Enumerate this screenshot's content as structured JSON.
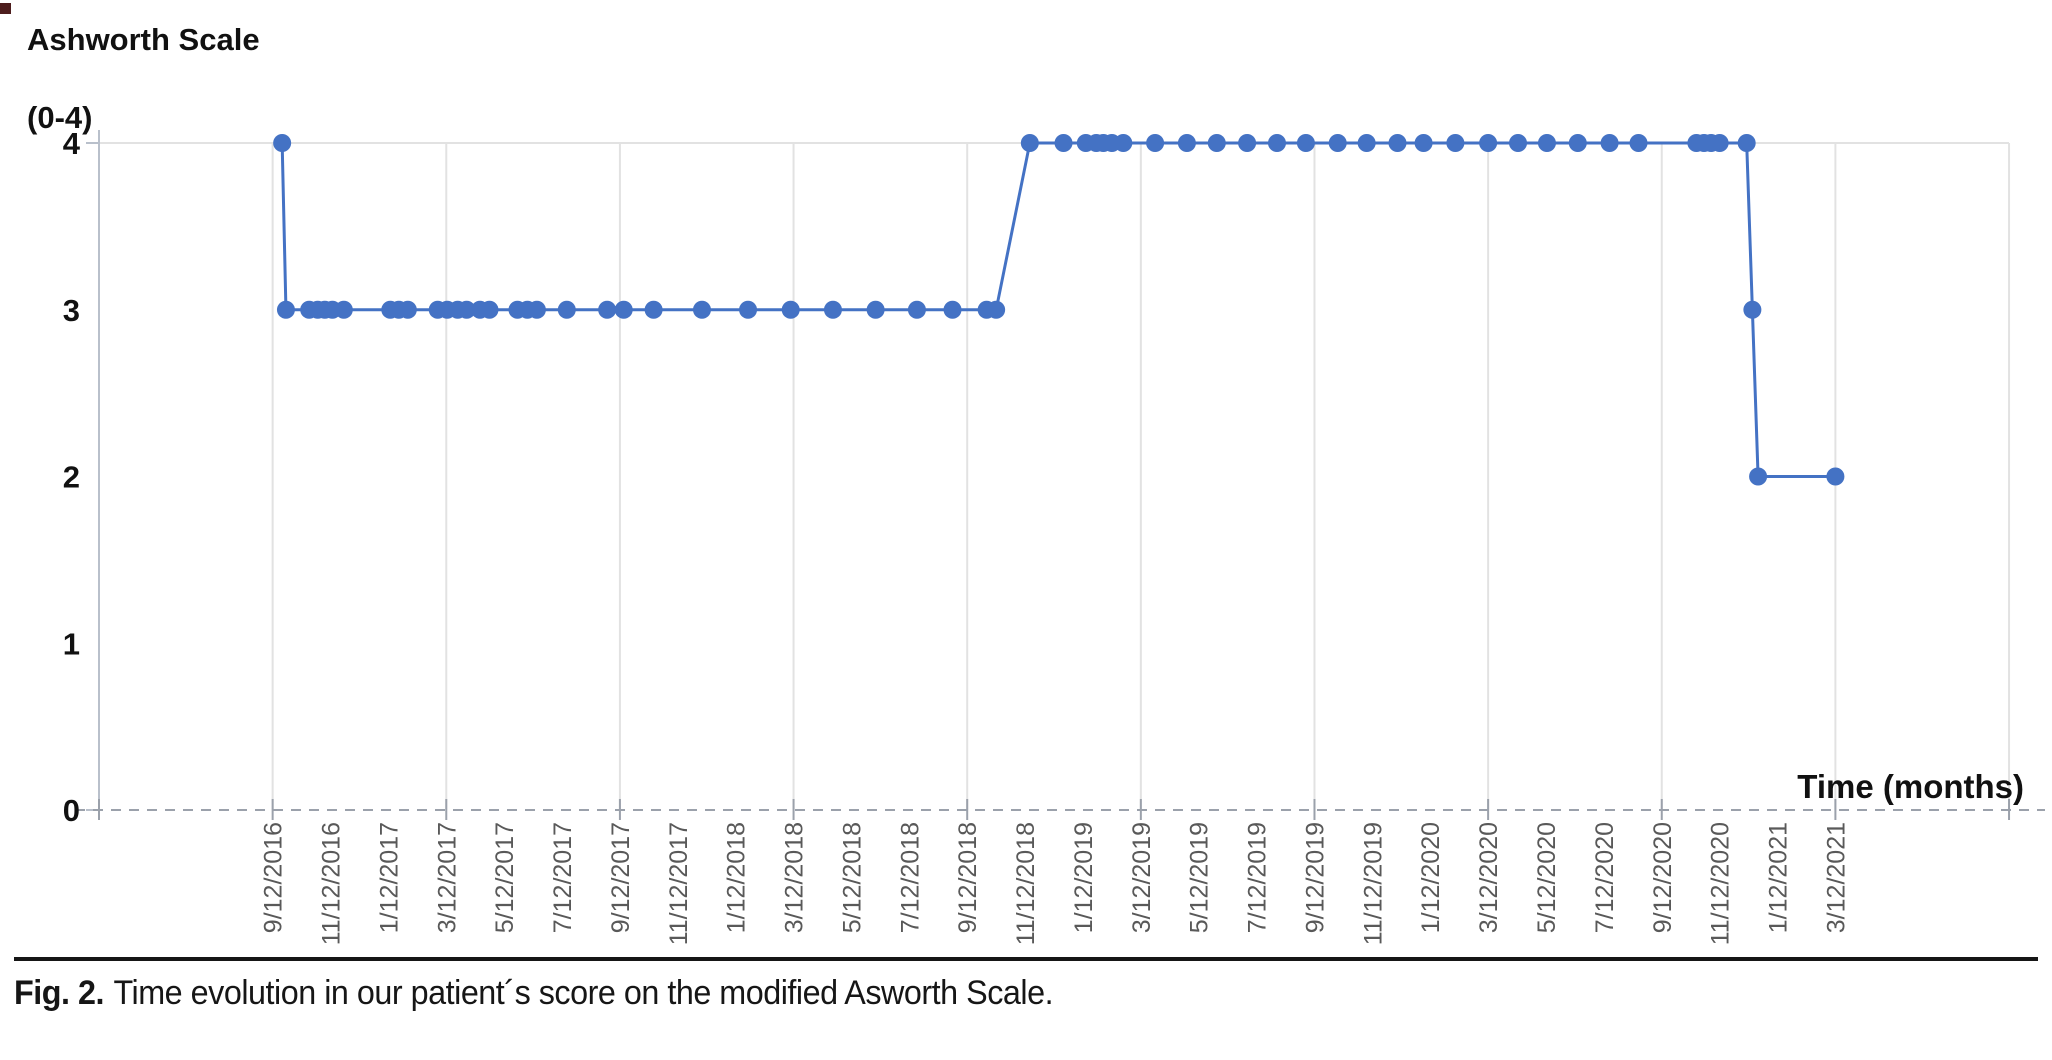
{
  "figure": {
    "caption_label": "Fig. 2.",
    "caption_text": "Time evolution in our patient´s score on the modified Asworth Scale."
  },
  "chart_data": {
    "type": "line",
    "title": "Ashworth Scale",
    "title_line2": "(0-4)",
    "x_axis_title": "Time (months)",
    "ylabel": "Ashworth Scale (0-4)",
    "ylim": [
      0,
      4
    ],
    "y_ticks": [
      0,
      1,
      2,
      3,
      4
    ],
    "x_domain": [
      "3/12/2016",
      "9/12/2021"
    ],
    "x_tick_labels": [
      "9/12/2016",
      "11/12/2016",
      "1/12/2017",
      "3/12/2017",
      "5/12/2017",
      "7/12/2017",
      "9/12/2017",
      "11/12/2017",
      "1/12/2018",
      "3/12/2018",
      "5/12/2018",
      "7/12/2018",
      "9/12/2018",
      "11/12/2018",
      "1/12/2019",
      "3/12/2019",
      "5/12/2019",
      "7/12/2019",
      "9/12/2019",
      "11/12/2019",
      "1/12/2020",
      "3/12/2020",
      "5/12/2020",
      "7/12/2020",
      "9/12/2020",
      "11/12/2020",
      "1/12/2021",
      "3/12/2021"
    ],
    "gridline_dates": [
      "9/12/2016",
      "3/12/2017",
      "9/12/2017",
      "3/12/2018",
      "9/12/2018",
      "3/12/2019",
      "9/12/2019",
      "3/12/2020",
      "9/12/2020",
      "3/12/2021",
      "9/12/2021"
    ],
    "grid": "vertical gridlines every 6 months, horizontal line at y=4, dashed baseline at y=0",
    "legend": "none",
    "series": [
      {
        "name": "Modified Ashworth Scale score",
        "points": [
          {
            "date": "9/22/2016",
            "score": 4
          },
          {
            "date": "9/26/2016",
            "score": 3
          },
          {
            "date": "10/20/2016",
            "score": 3
          },
          {
            "date": "10/29/2016",
            "score": 3
          },
          {
            "date": "11/6/2016",
            "score": 3
          },
          {
            "date": "11/14/2016",
            "score": 3
          },
          {
            "date": "11/26/2016",
            "score": 3
          },
          {
            "date": "1/14/2017",
            "score": 3
          },
          {
            "date": "1/23/2017",
            "score": 3
          },
          {
            "date": "2/2/2017",
            "score": 3
          },
          {
            "date": "3/3/2017",
            "score": 3
          },
          {
            "date": "3/13/2017",
            "score": 3
          },
          {
            "date": "3/24/2017",
            "score": 3
          },
          {
            "date": "4/3/2017",
            "score": 3
          },
          {
            "date": "4/17/2017",
            "score": 3
          },
          {
            "date": "4/27/2017",
            "score": 3
          },
          {
            "date": "5/26/2017",
            "score": 3
          },
          {
            "date": "6/6/2017",
            "score": 3
          },
          {
            "date": "6/16/2017",
            "score": 3
          },
          {
            "date": "7/17/2017",
            "score": 3
          },
          {
            "date": "8/29/2017",
            "score": 3
          },
          {
            "date": "9/16/2017",
            "score": 3
          },
          {
            "date": "10/17/2017",
            "score": 3
          },
          {
            "date": "12/7/2017",
            "score": 3
          },
          {
            "date": "1/25/2018",
            "score": 3
          },
          {
            "date": "3/9/2018",
            "score": 3
          },
          {
            "date": "4/23/2018",
            "score": 3
          },
          {
            "date": "6/7/2018",
            "score": 3
          },
          {
            "date": "7/20/2018",
            "score": 3
          },
          {
            "date": "8/27/2018",
            "score": 3
          },
          {
            "date": "10/2/2018",
            "score": 3
          },
          {
            "date": "10/12/2018",
            "score": 3
          },
          {
            "date": "11/17/2018",
            "score": 4
          },
          {
            "date": "12/22/2018",
            "score": 4
          },
          {
            "date": "1/15/2019",
            "score": 4
          },
          {
            "date": "1/26/2019",
            "score": 4
          },
          {
            "date": "2/3/2019",
            "score": 4
          },
          {
            "date": "2/12/2019",
            "score": 4
          },
          {
            "date": "2/24/2019",
            "score": 4
          },
          {
            "date": "3/27/2019",
            "score": 4
          },
          {
            "date": "4/30/2019",
            "score": 4
          },
          {
            "date": "5/31/2019",
            "score": 4
          },
          {
            "date": "7/2/2019",
            "score": 4
          },
          {
            "date": "8/3/2019",
            "score": 4
          },
          {
            "date": "9/3/2019",
            "score": 4
          },
          {
            "date": "10/6/2019",
            "score": 4
          },
          {
            "date": "11/6/2019",
            "score": 4
          },
          {
            "date": "12/8/2019",
            "score": 4
          },
          {
            "date": "1/5/2020",
            "score": 4
          },
          {
            "date": "2/8/2020",
            "score": 4
          },
          {
            "date": "3/12/2020",
            "score": 4
          },
          {
            "date": "4/13/2020",
            "score": 4
          },
          {
            "date": "5/13/2020",
            "score": 4
          },
          {
            "date": "6/15/2020",
            "score": 4
          },
          {
            "date": "7/18/2020",
            "score": 4
          },
          {
            "date": "8/18/2020",
            "score": 4
          },
          {
            "date": "10/18/2020",
            "score": 4
          },
          {
            "date": "10/26/2020",
            "score": 4
          },
          {
            "date": "11/3/2020",
            "score": 4
          },
          {
            "date": "11/12/2020",
            "score": 4
          },
          {
            "date": "12/10/2020",
            "score": 4
          },
          {
            "date": "12/16/2020",
            "score": 3
          },
          {
            "date": "12/22/2020",
            "score": 2
          },
          {
            "date": "3/12/2021",
            "score": 2
          }
        ]
      }
    ],
    "colors": {
      "series": "#4472C4",
      "gridline": "#E2E2E2",
      "axis_line": "#B9C0CB",
      "zero_dash": "#9BA1AB",
      "x_tick_label": "#595959",
      "text": "#111111"
    }
  }
}
